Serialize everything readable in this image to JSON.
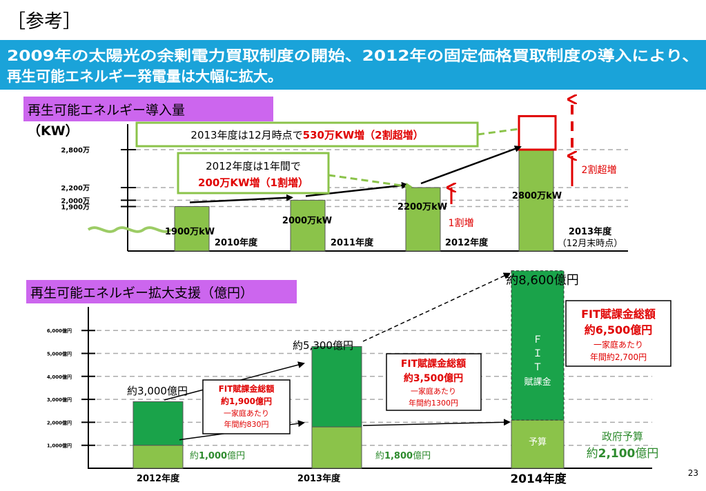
{
  "slide": {
    "tag": "［参考］",
    "banner_line1": "2009年の太陽光の余剰電力買取制度の開始、2012年の固定価格買取制度の導入により、",
    "banner_line2": "再生可能エネルギー発電量は大幅に拡大。",
    "page_number": "23"
  },
  "colors": {
    "banner": "#1aa3d9",
    "section_label": "#cc66ee",
    "light_bar": "#8bc34a",
    "dark_bar": "#1aa34a",
    "red": "#e00000",
    "callout_border_green": "#8bc34a"
  },
  "chart_data": [
    {
      "type": "bar",
      "title": "再生可能エネルギー導入量",
      "unit": "（KW）",
      "categories": [
        "2010年度",
        "2011年度",
        "2012年度",
        "2013年度"
      ],
      "category_note": "（12月末時点）",
      "values": [
        1900,
        2000,
        2200,
        2800
      ],
      "projected_total": 3330,
      "value_labels": [
        "1900万kW",
        "2000万kW",
        "2200万kW",
        "2800万kW"
      ],
      "yticks": [
        1900,
        2000,
        2200,
        2800
      ],
      "ytick_labels": [
        "1,900万",
        "2,000万",
        "2,200万",
        "2,800万"
      ],
      "annotations": {
        "c2013_pre": "2013年度は12月時点で",
        "c2013_red": "530万KW増（2割超増）",
        "c2012_line1": "2012年度は1年間で",
        "c2012_line2": "200万KW増（1割増）",
        "inc_10": "1割増",
        "inc_20": "2割超増"
      }
    },
    {
      "type": "bar",
      "title": "再生可能エネルギー拡大支援（億円）",
      "categories": [
        "2012年度",
        "2013年度",
        "2014年度"
      ],
      "series": [
        {
          "name": "政府予算",
          "values": [
            1000,
            1800,
            2100
          ]
        },
        {
          "name": "FIT賦課金",
          "values": [
            1900,
            3500,
            6500
          ]
        }
      ],
      "totals": [
        3000,
        5300,
        8600
      ],
      "total_labels": [
        "約3,000億円",
        "約5,300億円",
        "約8,600億円"
      ],
      "budget_prefix": [
        "約",
        "約",
        "約"
      ],
      "budget_values": [
        "1,000",
        "1,800",
        "2,100"
      ],
      "budget_unit": "億円",
      "budget_title": "政府予算",
      "yticks": [
        1000,
        2000,
        3000,
        4000,
        5000,
        6000
      ],
      "ytick_labels": [
        "1,000億円",
        "2,000億円",
        "3,000億円",
        "4,000億円",
        "5,000億円",
        "6,000億円"
      ],
      "fit_boxes": [
        {
          "title": "FIT賦課金総額",
          "amount": "約1,900億円",
          "sub1": "一家庭あたり",
          "sub2": "年間約830円"
        },
        {
          "title": "FIT賦課金総額",
          "amount": "約3,500億円",
          "sub1": "一家庭あたり",
          "sub2": "年間約1300円"
        },
        {
          "title": "FIT賦課金総額",
          "amount": "約6,500億円",
          "sub1": "一家庭あたり",
          "sub2": "年間約2,700円"
        }
      ],
      "bar_fit_label": "ＦＩＴ賦課金",
      "bar_budget_label": "予算"
    }
  ]
}
